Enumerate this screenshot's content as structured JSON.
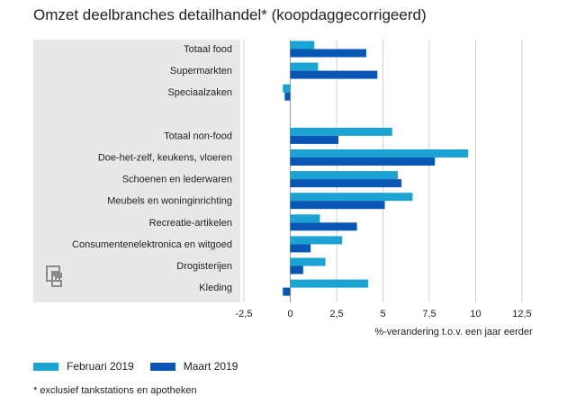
{
  "chart_data": {
    "type": "bar",
    "orientation": "horizontal",
    "title": "Omzet deelbranches detailhandel* (koopdaggecorrigeerd)",
    "xlabel": "%-verandering t.o.v. een jaar eerder",
    "xlim": [
      -2.5,
      12.5
    ],
    "x_ticks": [
      "-2,5",
      "0",
      "2,5",
      "5",
      "7,5",
      "10",
      "12,5"
    ],
    "x_tick_values": [
      -2.5,
      0,
      2.5,
      5,
      7.5,
      10,
      12.5
    ],
    "grid": "vertical",
    "legend_position": "bottom",
    "categories": [
      "Totaal food",
      "Supermarkten",
      "Speciaalzaken",
      "",
      "Totaal non-food",
      "Doe-het-zelf, keukens, vloeren",
      "Schoenen en lederwaren",
      "Meubels en woninginrichting",
      "Recreatie-artikelen",
      "Consumentenelektronica en witgoed",
      "Drogisterijen",
      "Kleding"
    ],
    "series": [
      {
        "name": "Februari 2019",
        "color": "#1aa3d3",
        "values": [
          1.3,
          1.5,
          -0.4,
          null,
          5.5,
          9.6,
          5.8,
          6.6,
          1.6,
          2.8,
          1.9,
          4.2
        ]
      },
      {
        "name": "Maart 2019",
        "color": "#0a56b4",
        "values": [
          4.1,
          4.7,
          -0.3,
          null,
          2.6,
          7.8,
          6.0,
          5.1,
          3.6,
          1.1,
          0.7,
          -0.4
        ]
      }
    ]
  },
  "footnote": "* exclusief tankstations en apotheken",
  "logo_icon": "cbs-logo-icon"
}
